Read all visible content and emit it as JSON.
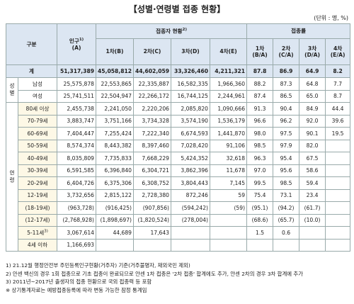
{
  "title": "【성별·연령별 접종 현황】",
  "unit": "(단위 : 명, %)",
  "header": {
    "category": "구분",
    "population": {
      "text": "인구",
      "note": "1)",
      "sub": "(A)"
    },
    "vaccinated": {
      "text": "접종자 현황",
      "note": "2)",
      "columns": [
        "1차(B)",
        "2차(C)",
        "3차(D)",
        "4차(E)"
      ]
    },
    "rate": {
      "text": "접종률",
      "columns": [
        {
          "top": "1차",
          "sub": "(B/A)"
        },
        {
          "top": "2차",
          "sub": "(C/A)"
        },
        {
          "top": "3차",
          "sub": "(D/A)"
        },
        {
          "top": "4차",
          "sub": "(E/A)"
        }
      ]
    }
  },
  "total": {
    "label": "계",
    "cells": [
      "51,317,389",
      "45,058,812",
      "44,602,059",
      "33,326,460",
      "4,211,321",
      "87.8",
      "86.9",
      "64.9",
      "8.2"
    ]
  },
  "groups": [
    {
      "name": "성별",
      "rows": [
        {
          "label": "남성",
          "cells": [
            "25,575,878",
            "22,553,865",
            "22,335,887",
            "16,582,335",
            "1,966,360",
            "88.2",
            "87.3",
            "64.8",
            "7.7"
          ]
        },
        {
          "label": "여성",
          "cells": [
            "25,741,511",
            "22,504,947",
            "22,266,172",
            "16,744,125",
            "2,244,961",
            "87.4",
            "86.5",
            "65.0",
            "8.7"
          ]
        }
      ]
    },
    {
      "name": "연령",
      "rows": [
        {
          "label": "80세 이상",
          "cells": [
            "2,455,738",
            "2,241,050",
            "2,220,206",
            "2,085,820",
            "1,090,666",
            "91.3",
            "90.4",
            "84.9",
            "44.4"
          ]
        },
        {
          "label": "70-79세",
          "cells": [
            "3,883,747",
            "3,751,166",
            "3,734,328",
            "3,574,190",
            "1,536,179",
            "96.6",
            "96.2",
            "92.0",
            "39.6"
          ]
        },
        {
          "label": "60-69세",
          "cells": [
            "7,404,447",
            "7,255,424",
            "7,222,340",
            "6,674,593",
            "1,441,870",
            "98.0",
            "97.5",
            "90.1",
            "19.5"
          ]
        },
        {
          "label": "50-59세",
          "cells": [
            "8,574,374",
            "8,443,382",
            "8,397,460",
            "7,028,420",
            "91,106",
            "98.5",
            "97.9",
            "82.0",
            null
          ]
        },
        {
          "label": "40-49세",
          "cells": [
            "8,035,809",
            "7,735,833",
            "7,668,229",
            "5,424,352",
            "32,618",
            "96.3",
            "95.4",
            "67.5",
            null
          ]
        },
        {
          "label": "30-39세",
          "cells": [
            "6,591,585",
            "6,396,840",
            "6,304,721",
            "3,862,396",
            "11,678",
            "97.0",
            "95.6",
            "58.6",
            null
          ]
        },
        {
          "label": "20-29세",
          "cells": [
            "6,404,726",
            "6,375,306",
            "6,308,752",
            "3,804,443",
            "7,145",
            "99.5",
            "98.5",
            "59.4",
            null
          ]
        },
        {
          "label": "12-19세",
          "cells": [
            "3,732,656",
            "2,815,122",
            "2,728,380",
            "872,246",
            "59",
            "75.4",
            "73.1",
            "23.4",
            null
          ]
        },
        {
          "label": "(18-19세)",
          "cells": [
            "(963,728)",
            "(916,425)",
            "(907,856)",
            "(594,242)",
            "(59)",
            "(95.1)",
            "(94.2)",
            "(61.7)",
            null
          ]
        },
        {
          "label": "(12-17세)",
          "cells": [
            "(2,768,928)",
            "(1,898,697)",
            "(1,820,524)",
            "(278,004)",
            null,
            "(68.6)",
            "(65.7)",
            "(10.0)",
            null
          ]
        },
        {
          "label": "5-11세",
          "note": "3)",
          "cells": [
            "3,067,614",
            "44,689",
            "17,643",
            null,
            null,
            "1.5",
            "0.6",
            null,
            null
          ]
        },
        {
          "label": "4세 이하",
          "cells": [
            "1,166,693",
            null,
            null,
            null,
            null,
            null,
            null,
            null,
            null
          ]
        }
      ]
    }
  ],
  "footnotes": [
    "1) 21.12월 행정안전부 주민등록인구현황(거주자) 기준(거주불명자, 재외국민 제외)",
    "2) 안센 백신의 경우 1회 접종으로 기초 접종이 완료되므로 얀센 1차 접종은 '2차 접종' 합계에도 추가, 얀센 2차의 경우 3차 합계에 추가",
    "3) 2011년~2017년 출생자의 접종 현황으로 국외 접종력 등 포함",
    "※ 상기통계자료는 예방접종등록에 따라 변동 가능한 잠정 통계임"
  ]
}
